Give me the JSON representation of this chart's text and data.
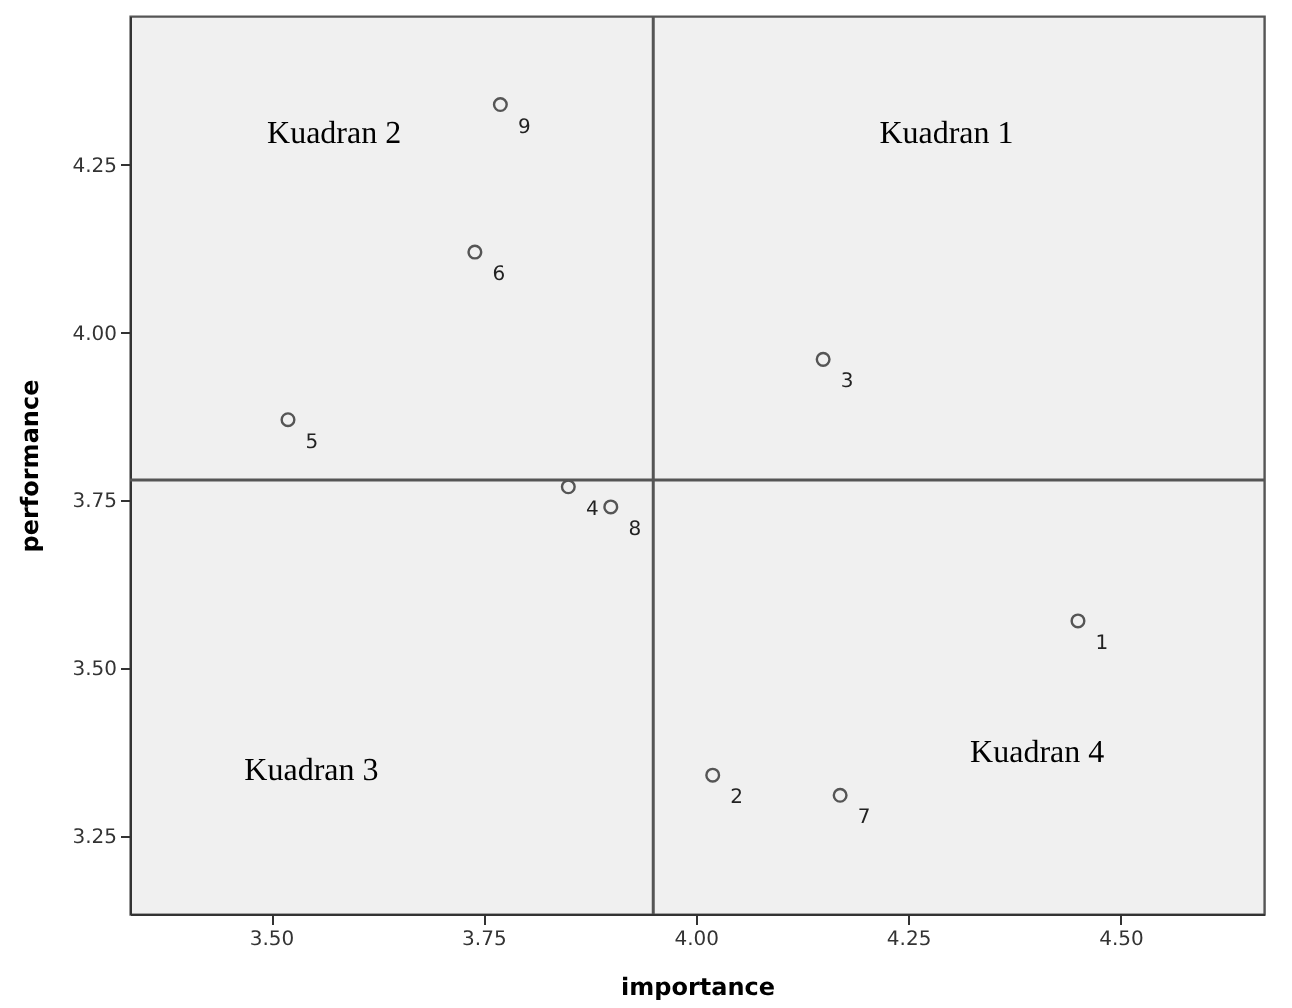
{
  "chart_data": {
    "type": "scatter",
    "xlabel": "importance",
    "ylabel": "performance",
    "x": [
      4.45,
      4.02,
      4.15,
      3.85,
      3.52,
      3.74,
      4.17,
      3.9,
      3.77
    ],
    "values": [
      3.57,
      3.34,
      3.96,
      3.77,
      3.87,
      4.12,
      3.31,
      3.74,
      4.34
    ],
    "color": "#555555",
    "marker": "circle",
    "xlim": [
      3.334,
      4.669
    ],
    "xticks": [
      {
        "value": 3.5,
        "label": "3.50"
      },
      {
        "value": 3.75,
        "label": "3.75"
      },
      {
        "value": 4.0,
        "label": "4.00"
      },
      {
        "value": 4.25,
        "label": "4.25"
      },
      {
        "value": 4.5,
        "label": "4.50"
      }
    ],
    "ylim": [
      3.133,
      4.472
    ],
    "yticks": [
      {
        "value": 3.25,
        "label": "3.25"
      },
      {
        "value": 3.5,
        "label": "3.50"
      },
      {
        "value": 3.75,
        "label": "3.75"
      },
      {
        "value": 4.0,
        "label": "4.00"
      },
      {
        "value": 4.25,
        "label": "4.25"
      }
    ],
    "ref_lines": [
      {
        "axis": "x",
        "value": 3.95,
        "color": "#555555"
      },
      {
        "axis": "y",
        "value": 3.78,
        "color": "#555555"
      }
    ],
    "annotations": [
      "Kuadran 1",
      "Kuadran 2",
      "Kuadran 3",
      "Kuadran 4",
      {
        "text": "1",
        "x": 4.45,
        "y": 3.57
      },
      {
        "text": "2",
        "x": 4.02,
        "y": 3.34
      },
      {
        "text": "3",
        "x": 4.15,
        "y": 3.96
      },
      {
        "text": "4",
        "x": 3.85,
        "y": 3.77
      },
      {
        "text": "5",
        "x": 3.52,
        "y": 3.87
      },
      {
        "text": "6",
        "x": 3.74,
        "y": 4.12
      },
      {
        "text": "7",
        "x": 4.17,
        "y": 3.31
      },
      {
        "text": "8",
        "x": 3.9,
        "y": 3.74
      },
      {
        "text": "9",
        "x": 3.77,
        "y": 4.34
      }
    ],
    "grid": false
  }
}
